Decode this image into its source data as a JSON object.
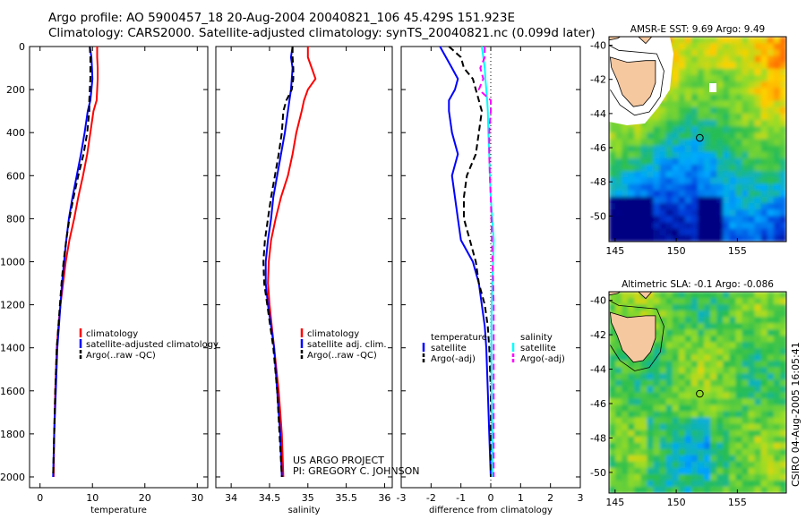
{
  "header": {
    "line1": "Argo profile: AO 5900457_18 20-Aug-2004 20040821_106 45.429S 151.923E",
    "line2": "Climatology: CARS2000. Satellite-adjusted climatology: synTS_20040821.nc (0.099d later)"
  },
  "credits": {
    "line1": "US ARGO PROJECT",
    "line2": "PI: GREGORY C. JOHNSON",
    "stamp": "CSIRO 04-Aug-2005 16:05:41"
  },
  "colors": {
    "climatology": "#ff0000",
    "satellite": "#0000ff",
    "argo": "#000000",
    "salinity_sat": "#00ffff",
    "salinity_argo": "#ff00ff",
    "land": "#f6c8a0"
  },
  "chart_data": [
    {
      "type": "line",
      "xlabel": "temperature",
      "xlim": [
        -2,
        32
      ],
      "ylim": [
        2050,
        0
      ],
      "xticks": [
        0,
        10,
        20,
        30
      ],
      "yticks": [
        0,
        200,
        400,
        600,
        800,
        1000,
        1200,
        1400,
        1600,
        1800,
        2000
      ],
      "legend": {
        "placement": "center-right",
        "entries": [
          "climatology",
          "satellite-adjusted climatology",
          "Argo(..raw -QC)"
        ]
      },
      "series": [
        {
          "name": "climatology",
          "color": "#ff0000",
          "style": "solid",
          "x": [
            10.9,
            10.9,
            11.0,
            11.0,
            10.9,
            10.8,
            10.2,
            9.6,
            9.0,
            8.2,
            7.3,
            6.5,
            5.6,
            4.9,
            4.4,
            3.9,
            3.5,
            3.2,
            2.9,
            2.7,
            2.6
          ],
          "y": [
            0,
            50,
            100,
            150,
            200,
            250,
            300,
            400,
            500,
            600,
            700,
            800,
            900,
            1000,
            1100,
            1200,
            1300,
            1400,
            1600,
            1800,
            2000
          ]
        },
        {
          "name": "satellite-adjusted climatology",
          "color": "#0000ff",
          "style": "solid",
          "x": [
            9.5,
            9.8,
            9.9,
            10.0,
            9.8,
            9.6,
            9.1,
            8.5,
            7.8,
            7.0,
            6.2,
            5.5,
            5.0,
            4.6,
            4.2,
            3.9,
            3.6,
            3.3,
            3.0,
            2.7,
            2.5
          ],
          "y": [
            0,
            50,
            100,
            150,
            200,
            250,
            300,
            400,
            500,
            600,
            700,
            800,
            900,
            1000,
            1100,
            1200,
            1300,
            1400,
            1600,
            1800,
            2000
          ]
        },
        {
          "name": "Argo(..raw -QC)",
          "color": "#000000",
          "style": "dashed",
          "x": [
            9.5,
            9.6,
            9.6,
            9.6,
            9.5,
            9.4,
            9.4,
            9.0,
            8.3,
            7.3,
            6.4,
            5.6,
            5.0,
            4.5,
            4.1,
            3.8,
            3.5,
            3.2,
            2.9,
            2.7,
            2.5
          ],
          "y": [
            0,
            50,
            100,
            150,
            200,
            250,
            300,
            400,
            500,
            600,
            700,
            800,
            900,
            1000,
            1100,
            1200,
            1300,
            1400,
            1600,
            1800,
            2000
          ]
        }
      ]
    },
    {
      "type": "line",
      "xlabel": "salinity",
      "xlim": [
        33.8,
        36.1
      ],
      "ylim": [
        2050,
        0
      ],
      "xticks": [
        34,
        34.5,
        35,
        35.5,
        36
      ],
      "legend": {
        "placement": "center-right",
        "entries": [
          "climatology",
          "satellite adj. clim.",
          "Argo(..raw -QC)"
        ]
      },
      "series": [
        {
          "name": "climatology",
          "color": "#ff0000",
          "style": "solid",
          "x": [
            35.0,
            35.0,
            35.05,
            35.1,
            35.0,
            34.95,
            34.92,
            34.85,
            34.8,
            34.74,
            34.65,
            34.58,
            34.52,
            34.49,
            34.48,
            34.5,
            34.53,
            34.56,
            34.62,
            34.66,
            34.68
          ],
          "y": [
            0,
            50,
            100,
            150,
            200,
            250,
            300,
            400,
            500,
            600,
            700,
            800,
            900,
            1000,
            1100,
            1200,
            1300,
            1400,
            1600,
            1800,
            2000
          ]
        },
        {
          "name": "satellite adj. clim.",
          "color": "#0000ff",
          "style": "solid",
          "x": [
            34.8,
            34.78,
            34.8,
            34.79,
            34.78,
            34.76,
            34.74,
            34.7,
            34.65,
            34.6,
            34.55,
            34.52,
            34.48,
            34.45,
            34.45,
            34.48,
            34.52,
            34.56,
            34.6,
            34.64,
            34.66
          ],
          "y": [
            0,
            50,
            100,
            150,
            200,
            250,
            300,
            400,
            500,
            600,
            700,
            800,
            900,
            1000,
            1100,
            1200,
            1300,
            1400,
            1600,
            1800,
            2000
          ]
        },
        {
          "name": "Argo(..raw -QC)",
          "color": "#000000",
          "style": "dashed",
          "x": [
            34.8,
            34.8,
            34.81,
            34.81,
            34.79,
            34.72,
            34.68,
            34.66,
            34.62,
            34.57,
            34.52,
            34.48,
            34.44,
            34.42,
            34.43,
            34.47,
            34.51,
            34.55,
            34.6,
            34.63,
            34.66
          ],
          "y": [
            0,
            50,
            100,
            150,
            200,
            250,
            300,
            400,
            500,
            600,
            700,
            800,
            900,
            1000,
            1100,
            1200,
            1300,
            1400,
            1600,
            1800,
            2000
          ]
        }
      ]
    },
    {
      "type": "line",
      "xlabel": "difference from climatology",
      "xlim": [
        -3,
        3
      ],
      "ylim": [
        2050,
        0
      ],
      "xticks": [
        -3,
        -2,
        -1,
        0,
        1,
        2,
        3
      ],
      "legend": {
        "placement": "bottom",
        "entries": [
          "temperature",
          "satellite",
          "Argo(-adj)",
          "salinity",
          "satellite",
          "Argo(-adj)"
        ]
      },
      "series": [
        {
          "name": "temperature satellite",
          "color": "#0000ff",
          "style": "solid",
          "x": [
            -1.7,
            -1.5,
            -1.3,
            -1.1,
            -1.2,
            -1.4,
            -1.4,
            -1.3,
            -1.1,
            -1.3,
            -1.2,
            -1.1,
            -1.0,
            -0.6,
            -0.4,
            -0.3,
            -0.2,
            -0.15,
            -0.1,
            -0.05,
            0.0
          ],
          "y": [
            0,
            50,
            100,
            150,
            200,
            250,
            300,
            400,
            500,
            600,
            700,
            800,
            900,
            1000,
            1100,
            1200,
            1300,
            1400,
            1600,
            1800,
            2000
          ]
        },
        {
          "name": "temperature Argo(-adj)",
          "color": "#000000",
          "style": "dashed",
          "x": [
            -1.4,
            -1.0,
            -0.9,
            -0.6,
            -0.5,
            -0.4,
            -0.3,
            -0.4,
            -0.5,
            -0.8,
            -0.9,
            -0.9,
            -0.7,
            -0.5,
            -0.4,
            -0.2,
            -0.1,
            -0.05,
            0.0,
            0.0,
            0.0
          ],
          "y": [
            0,
            50,
            100,
            150,
            200,
            250,
            300,
            400,
            500,
            600,
            700,
            800,
            900,
            1000,
            1100,
            1200,
            1300,
            1400,
            1600,
            1800,
            2000
          ]
        },
        {
          "name": "salinity satellite",
          "color": "#00ffff",
          "style": "solid",
          "x": [
            -0.3,
            -0.25,
            -0.2,
            -0.18,
            -0.15,
            -0.12,
            -0.1,
            -0.08,
            -0.05,
            -0.03,
            0.0,
            0.05,
            0.1,
            0.08,
            0.05,
            0.03,
            0.02,
            0.02,
            0.03,
            0.05,
            0.05
          ],
          "y": [
            0,
            50,
            100,
            150,
            200,
            250,
            300,
            400,
            500,
            600,
            700,
            800,
            900,
            1000,
            1100,
            1200,
            1300,
            1400,
            1600,
            1800,
            2000
          ]
        },
        {
          "name": "salinity Argo(-adj)",
          "color": "#ff00ff",
          "style": "dashed",
          "x": [
            -0.2,
            -0.2,
            -0.35,
            -0.25,
            -0.4,
            0.0,
            0.0,
            -0.05,
            -0.05,
            -0.03,
            0.0,
            0.02,
            0.04,
            0.06,
            0.08,
            0.1,
            0.1,
            0.1,
            0.1,
            0.1,
            0.1
          ],
          "y": [
            0,
            50,
            100,
            150,
            200,
            250,
            300,
            400,
            500,
            600,
            700,
            800,
            900,
            1000,
            1100,
            1200,
            1300,
            1400,
            1600,
            1800,
            2000
          ]
        }
      ]
    },
    {
      "type": "heatmap",
      "title": "AMSR-E SST: 9.69 Argo: 9.49",
      "xlim": [
        144.5,
        159
      ],
      "ylim": [
        -51.5,
        -39.5
      ],
      "xticks": [
        145,
        150,
        155
      ],
      "yticks": [
        -40,
        -42,
        -44,
        -46,
        -48,
        -50
      ],
      "marker": {
        "lon": 151.923,
        "lat": -45.429
      }
    },
    {
      "type": "heatmap",
      "title": "Altimetric SLA: -0.1 Argo: -0.086",
      "xlim": [
        144.5,
        159
      ],
      "ylim": [
        -51.2,
        -39.5
      ],
      "xticks": [
        145,
        150,
        155
      ],
      "yticks": [
        -40,
        -42,
        -44,
        -46,
        -48,
        -50
      ],
      "marker": {
        "lon": 151.923,
        "lat": -45.429
      }
    }
  ]
}
